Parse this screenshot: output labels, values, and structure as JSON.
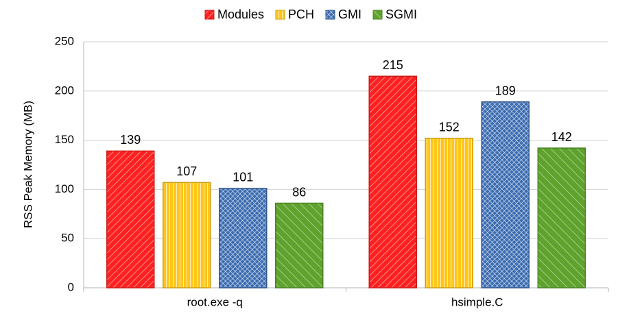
{
  "chart_data": {
    "type": "bar",
    "categories": [
      "root.exe -q",
      "hsimple.C"
    ],
    "series": [
      {
        "name": "Modules",
        "color": "#ff2020",
        "values": [
          139,
          215
        ]
      },
      {
        "name": "PCH",
        "color": "#ffc61a",
        "values": [
          107,
          152
        ]
      },
      {
        "name": "GMI",
        "color": "#3b6bb0",
        "values": [
          101,
          189
        ]
      },
      {
        "name": "SGMI",
        "color": "#5fa32e",
        "values": [
          86,
          142
        ]
      }
    ],
    "ylabel": "RSS Peak Memory (MB)",
    "ylim": [
      0,
      250
    ],
    "yticks": [
      0,
      50,
      100,
      150,
      200,
      250
    ],
    "grid": true,
    "legend": "top"
  }
}
